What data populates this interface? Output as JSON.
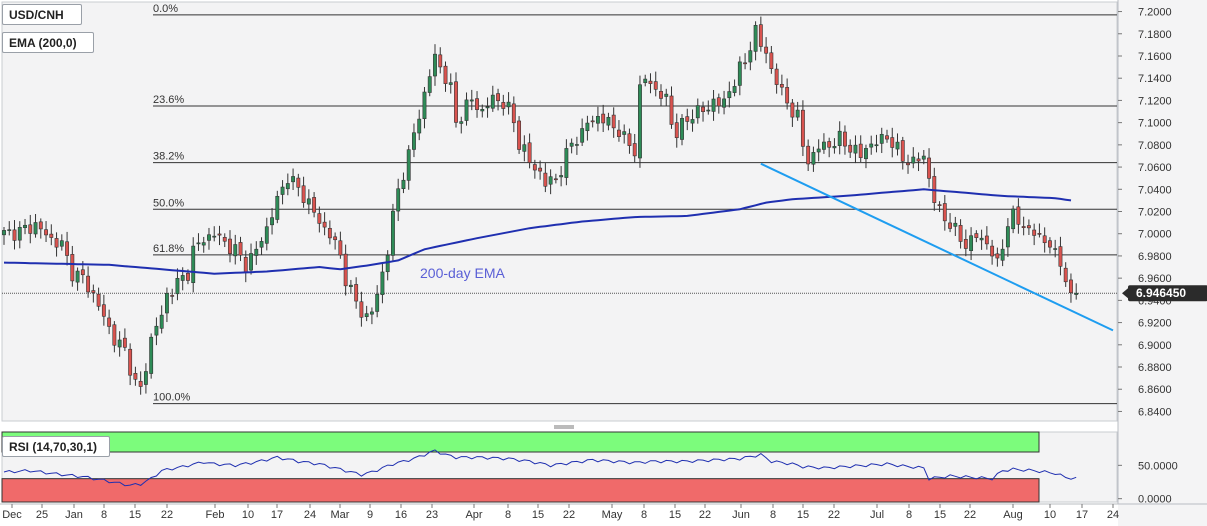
{
  "legend": {
    "pair": "USD/CNH",
    "ema": "EMA (200,0)",
    "rsi": "RSI (14,70,30,1)"
  },
  "annotations": {
    "ema_label": "200-day EMA"
  },
  "price_tag": "6.946450",
  "colors": {
    "up": "#2e8b57",
    "down": "#d9534f",
    "ema": "#1f2fb0",
    "trendline": "#1e9df0",
    "rsi_line": "#1f2fb0",
    "rsi_overbought": "#7cfc7c",
    "rsi_oversold": "#f06a6a",
    "price_tag_bg": "#2b2b2b"
  },
  "chart_data": [
    {
      "type": "candlestick",
      "ylim": [
        6.835,
        7.205
      ],
      "y_ticks": [
        "7.2000",
        "7.1800",
        "7.1600",
        "7.1400",
        "7.1200",
        "7.1000",
        "7.0800",
        "7.0600",
        "7.0400",
        "7.0200",
        "7.0000",
        "6.9800",
        "6.9600",
        "6.9400",
        "6.9200",
        "6.9000",
        "6.8800",
        "6.8600",
        "6.8400"
      ],
      "x_ticks": [
        "Dec",
        "25",
        "Jan",
        "8",
        "15",
        "22",
        "Feb",
        "10",
        "17",
        "24",
        "Mar",
        "9",
        "16",
        "23",
        "Apr",
        "8",
        "15",
        "22",
        "May",
        "8",
        "15",
        "22",
        "Jun",
        "8",
        "15",
        "22",
        "Jul",
        "8",
        "15",
        "22",
        "Aug",
        "10",
        "17",
        "24"
      ],
      "fibonacci": [
        {
          "label": "0.0%",
          "value": 7.197
        },
        {
          "label": "23.6%",
          "value": 7.115
        },
        {
          "label": "38.2%",
          "value": 7.064
        },
        {
          "label": "50.0%",
          "value": 7.022
        },
        {
          "label": "61.8%",
          "value": 6.981
        },
        {
          "label": "100.0%",
          "value": 6.847
        }
      ],
      "last_price": 6.94645,
      "close_path": [
        [
          0,
          7.0
        ],
        [
          3,
          7.002
        ],
        [
          6,
          7.008
        ],
        [
          9,
          6.995
        ],
        [
          11,
          6.99
        ],
        [
          13,
          6.965
        ],
        [
          15,
          6.96
        ],
        [
          17,
          6.945
        ],
        [
          19,
          6.925
        ],
        [
          21,
          6.905
        ],
        [
          23,
          6.895
        ],
        [
          24,
          6.88
        ],
        [
          25,
          6.865
        ],
        [
          26,
          6.86
        ],
        [
          27,
          6.88
        ],
        [
          28,
          6.905
        ],
        [
          29,
          6.918
        ],
        [
          30,
          6.925
        ],
        [
          31,
          6.945
        ],
        [
          33,
          6.955
        ],
        [
          35,
          6.965
        ],
        [
          36,
          6.985
        ],
        [
          38,
          6.995
        ],
        [
          40,
          7.0
        ],
        [
          42,
          6.992
        ],
        [
          44,
          6.985
        ],
        [
          46,
          6.972
        ],
        [
          48,
          6.985
        ],
        [
          50,
          7.005
        ],
        [
          52,
          7.03
        ],
        [
          54,
          7.052
        ],
        [
          56,
          7.04
        ],
        [
          58,
          7.028
        ],
        [
          60,
          7.01
        ],
        [
          62,
          7.0
        ],
        [
          64,
          6.98
        ],
        [
          65,
          6.96
        ],
        [
          66,
          6.948
        ],
        [
          67,
          6.938
        ],
        [
          68,
          6.93
        ],
        [
          69,
          6.925
        ],
        [
          70,
          6.93
        ],
        [
          71,
          6.945
        ],
        [
          72,
          6.965
        ],
        [
          73,
          6.985
        ],
        [
          74,
          7.015
        ],
        [
          75,
          7.04
        ],
        [
          76,
          7.055
        ],
        [
          77,
          7.07
        ],
        [
          78,
          7.09
        ],
        [
          80,
          7.125
        ],
        [
          82,
          7.16
        ],
        [
          83,
          7.15
        ],
        [
          85,
          7.13
        ],
        [
          86,
          7.1
        ],
        [
          88,
          7.115
        ],
        [
          89,
          7.12
        ],
        [
          91,
          7.11
        ],
        [
          93,
          7.122
        ],
        [
          95,
          7.118
        ],
        [
          96,
          7.112
        ],
        [
          97,
          7.1
        ],
        [
          98,
          7.082
        ],
        [
          99,
          7.075
        ],
        [
          100,
          7.064
        ],
        [
          102,
          7.055
        ],
        [
          103,
          7.045
        ],
        [
          105,
          7.05
        ],
        [
          106,
          7.058
        ],
        [
          107,
          7.07
        ],
        [
          108,
          7.082
        ],
        [
          110,
          7.09
        ],
        [
          111,
          7.1
        ],
        [
          113,
          7.105
        ],
        [
          115,
          7.1
        ],
        [
          117,
          7.093
        ],
        [
          118,
          7.085
        ],
        [
          119,
          7.08
        ],
        [
          120,
          7.075
        ],
        [
          121,
          7.13
        ],
        [
          122,
          7.14
        ],
        [
          124,
          7.13
        ],
        [
          126,
          7.12
        ],
        [
          127,
          7.1
        ],
        [
          128,
          7.092
        ],
        [
          130,
          7.102
        ],
        [
          132,
          7.112
        ],
        [
          134,
          7.11
        ],
        [
          135,
          7.122
        ],
        [
          137,
          7.115
        ],
        [
          138,
          7.13
        ],
        [
          139,
          7.138
        ],
        [
          140,
          7.148
        ],
        [
          141,
          7.155
        ],
        [
          142,
          7.168
        ],
        [
          143,
          7.185
        ],
        [
          144,
          7.17
        ],
        [
          146,
          7.15
        ],
        [
          147,
          7.138
        ],
        [
          148,
          7.125
        ],
        [
          149,
          7.12
        ],
        [
          150,
          7.11
        ],
        [
          151,
          7.105
        ],
        [
          152,
          7.08
        ],
        [
          153,
          7.065
        ],
        [
          155,
          7.078
        ],
        [
          157,
          7.08
        ],
        [
          159,
          7.085
        ],
        [
          161,
          7.078
        ],
        [
          163,
          7.07
        ],
        [
          164,
          7.078
        ],
        [
          166,
          7.082
        ],
        [
          168,
          7.088
        ],
        [
          170,
          7.075
        ],
        [
          171,
          7.068
        ],
        [
          173,
          7.064
        ],
        [
          175,
          7.07
        ],
        [
          176,
          7.05
        ],
        [
          177,
          7.03
        ],
        [
          178,
          7.02
        ],
        [
          179,
          7.015
        ],
        [
          181,
          7.002
        ],
        [
          183,
          6.99
        ],
        [
          185,
          6.998
        ],
        [
          187,
          6.992
        ],
        [
          188,
          6.982
        ],
        [
          189,
          6.972
        ],
        [
          190,
          6.99
        ],
        [
          191,
          7.01
        ],
        [
          192,
          7.015
        ],
        [
          194,
          7.008
        ],
        [
          195,
          7.002
        ],
        [
          197,
          6.998
        ],
        [
          199,
          6.99
        ],
        [
          200,
          6.98
        ],
        [
          201,
          6.975
        ],
        [
          202,
          6.96
        ],
        [
          203,
          6.94
        ],
        [
          204,
          6.946
        ]
      ],
      "ema_path": [
        [
          0,
          6.974
        ],
        [
          20,
          6.972
        ],
        [
          30,
          6.968
        ],
        [
          40,
          6.964
        ],
        [
          50,
          6.966
        ],
        [
          60,
          6.97
        ],
        [
          64,
          6.968
        ],
        [
          70,
          6.972
        ],
        [
          75,
          6.976
        ],
        [
          80,
          6.986
        ],
        [
          90,
          6.996
        ],
        [
          100,
          7.005
        ],
        [
          110,
          7.011
        ],
        [
          120,
          7.015
        ],
        [
          130,
          7.016
        ],
        [
          140,
          7.022
        ],
        [
          145,
          7.028
        ],
        [
          150,
          7.031
        ],
        [
          160,
          7.034
        ],
        [
          170,
          7.038
        ],
        [
          175,
          7.04
        ],
        [
          180,
          7.038
        ],
        [
          190,
          7.034
        ],
        [
          200,
          7.032
        ],
        [
          203,
          7.03
        ]
      ],
      "trendline": {
        "from": [
          144,
          7.063
        ],
        "to": [
          211,
          6.913
        ]
      }
    },
    {
      "type": "line",
      "name_hidden": true,
      "ylim": [
        -5,
        100
      ],
      "y_ticks": [
        "50.0000",
        "0.0000"
      ],
      "overbought": 70,
      "oversold": 30,
      "values_path": [
        [
          0,
          40
        ],
        [
          5,
          42
        ],
        [
          10,
          37
        ],
        [
          15,
          33
        ],
        [
          20,
          26
        ],
        [
          24,
          20
        ],
        [
          26,
          22
        ],
        [
          28,
          30
        ],
        [
          30,
          42
        ],
        [
          34,
          48
        ],
        [
          38,
          55
        ],
        [
          40,
          52
        ],
        [
          44,
          50
        ],
        [
          48,
          55
        ],
        [
          52,
          62
        ],
        [
          56,
          56
        ],
        [
          60,
          52
        ],
        [
          64,
          44
        ],
        [
          68,
          36
        ],
        [
          70,
          40
        ],
        [
          74,
          52
        ],
        [
          78,
          60
        ],
        [
          80,
          66
        ],
        [
          82,
          72
        ],
        [
          84,
          66
        ],
        [
          86,
          62
        ],
        [
          90,
          62
        ],
        [
          96,
          60
        ],
        [
          100,
          56
        ],
        [
          104,
          50
        ],
        [
          108,
          54
        ],
        [
          112,
          58
        ],
        [
          116,
          56
        ],
        [
          120,
          54
        ],
        [
          124,
          56
        ],
        [
          130,
          56
        ],
        [
          135,
          58
        ],
        [
          140,
          60
        ],
        [
          144,
          66
        ],
        [
          146,
          56
        ],
        [
          150,
          52
        ],
        [
          152,
          48
        ],
        [
          156,
          46
        ],
        [
          160,
          48
        ],
        [
          164,
          50
        ],
        [
          168,
          52
        ],
        [
          172,
          48
        ],
        [
          175,
          46
        ],
        [
          176,
          30
        ],
        [
          180,
          34
        ],
        [
          184,
          32
        ],
        [
          188,
          30
        ],
        [
          190,
          42
        ],
        [
          192,
          44
        ],
        [
          196,
          42
        ],
        [
          200,
          38
        ],
        [
          202,
          32
        ],
        [
          204,
          30
        ]
      ]
    }
  ]
}
